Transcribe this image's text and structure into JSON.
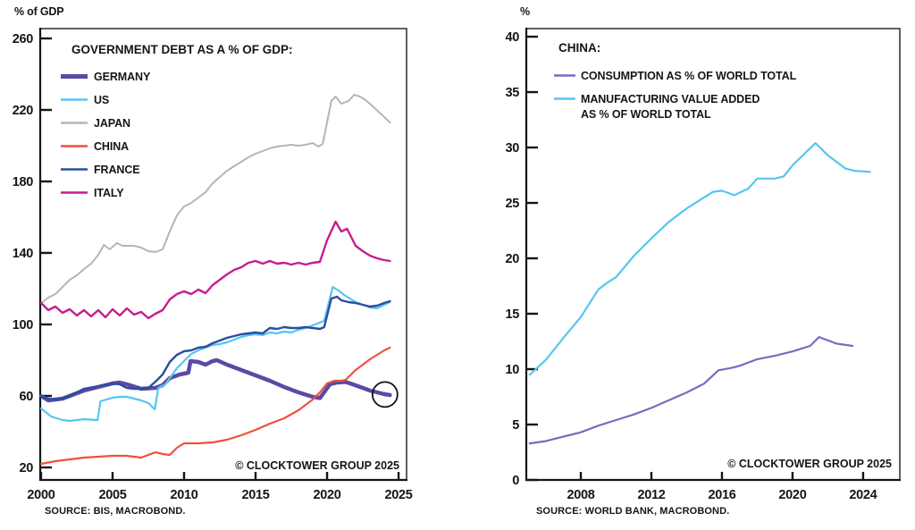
{
  "chart_data": [
    {
      "type": "line",
      "panel": "left",
      "axis_top_label": "% of GDP",
      "title": "GOVERNMENT DEBT AS A % OF GDP:",
      "source": "SOURCE: BIS, MACROBOND.",
      "watermark": "© CLOCKTOWER GROUP 2025",
      "xlim": [
        1999.94,
        2025.56
      ],
      "ylim": [
        13,
        265.5
      ],
      "x_ticks": [
        2000,
        2005,
        2010,
        2015,
        2020,
        2025
      ],
      "y_ticks": [
        20,
        60,
        100,
        140,
        180,
        220,
        260
      ],
      "grid": false,
      "legend_position": "top-left",
      "frame_color": "#2b2b2b",
      "text_color": "#151515",
      "series": [
        {
          "name": "GERMANY",
          "legend_lines": [
            "GERMANY"
          ],
          "color": "#5b4aa4",
          "width": 4.5,
          "z": 3,
          "x": [
            2000,
            2000.5,
            2001,
            2001.5,
            2002,
            2003,
            2004,
            2005,
            2005.5,
            2006,
            2007,
            2008,
            2008.5,
            2009,
            2009.7,
            2010.3,
            2010.45,
            2011,
            2011.5,
            2012,
            2012.3,
            2013,
            2014,
            2015,
            2016,
            2017,
            2018,
            2019,
            2019.5,
            2020.2,
            2020.7,
            2021.3,
            2021.8,
            2022.5,
            2023,
            2023.5,
            2024,
            2024.4
          ],
          "values": [
            60,
            57.5,
            58,
            58.5,
            60,
            63,
            65,
            67,
            67.5,
            66.5,
            64,
            64.5,
            66,
            70,
            72,
            73,
            79.5,
            79,
            77.5,
            79.5,
            80,
            77.5,
            74.5,
            71.5,
            68.5,
            65,
            62,
            59.5,
            58.8,
            66.5,
            67.5,
            67.8,
            66.5,
            64.5,
            63,
            62,
            61,
            60.5
          ]
        },
        {
          "name": "US",
          "legend_lines": [
            "US"
          ],
          "color": "#56c5f2",
          "width": 2.2,
          "z": 5,
          "x": [
            2000,
            2000.7,
            2001.5,
            2002,
            2003,
            2003.95,
            2004.15,
            2005,
            2005.5,
            2006,
            2006.5,
            2007,
            2007.5,
            2007.95,
            2008.2,
            2008.7,
            2009,
            2009.5,
            2010,
            2010.5,
            2011,
            2011.5,
            2012,
            2012.5,
            2013,
            2013.5,
            2014,
            2014.5,
            2015,
            2015.5,
            2016,
            2016.5,
            2017,
            2017.5,
            2018,
            2018.5,
            2019,
            2019.5,
            2019.8,
            2020.4,
            2020.8,
            2021.2,
            2021.6,
            2022,
            2022.5,
            2023,
            2023.5,
            2024,
            2024.4
          ],
          "values": [
            53,
            48.5,
            46.5,
            46,
            47,
            46.5,
            57,
            59,
            59.5,
            59.5,
            58.5,
            57.5,
            56,
            52.5,
            64.5,
            66.5,
            70,
            75.5,
            79.5,
            83.5,
            85.5,
            87,
            88.5,
            89,
            90,
            91.5,
            93,
            94,
            94.5,
            94,
            95.5,
            95,
            96,
            95.5,
            97,
            98,
            99.5,
            101,
            102,
            121,
            119,
            116.5,
            114.5,
            112.5,
            111,
            109.5,
            109,
            111,
            112.5
          ]
        },
        {
          "name": "JAPAN",
          "legend_lines": [
            "JAPAN"
          ],
          "color": "#b5b5b5",
          "width": 2,
          "z": 1,
          "x": [
            2000,
            2000.5,
            2001,
            2001.5,
            2002,
            2002.5,
            2003,
            2003.5,
            2004,
            2004.4,
            2004.8,
            2005.3,
            2005.7,
            2006.5,
            2007,
            2007.5,
            2008,
            2008.5,
            2009,
            2009.5,
            2010,
            2010.5,
            2011,
            2011.5,
            2012,
            2012.5,
            2013,
            2013.5,
            2014,
            2014.5,
            2015,
            2015.5,
            2016,
            2016.5,
            2017,
            2017.5,
            2018,
            2018.5,
            2019,
            2019.4,
            2019.7,
            2020.3,
            2020.6,
            2021,
            2021.5,
            2021.9,
            2022.3,
            2022.7,
            2023.2,
            2023.6,
            2024,
            2024.4
          ],
          "values": [
            112,
            115,
            117,
            121,
            125,
            127.5,
            131,
            134,
            139,
            144.5,
            142,
            145.5,
            144,
            144,
            143,
            141,
            140.5,
            142,
            152,
            161,
            166,
            168,
            171,
            174,
            179,
            182.5,
            186,
            188.5,
            191,
            193.5,
            195.5,
            197,
            198.5,
            199.5,
            200,
            200.5,
            200,
            200.5,
            201.5,
            199.5,
            201,
            225,
            227.5,
            223.5,
            225,
            228.5,
            227.5,
            225.5,
            222,
            219,
            216,
            213
          ]
        },
        {
          "name": "CHINA",
          "legend_lines": [
            "CHINA"
          ],
          "color": "#f1503a",
          "width": 2.2,
          "z": 4,
          "x": [
            2000,
            2001,
            2002,
            2003,
            2004,
            2005,
            2006,
            2006.5,
            2007,
            2007.5,
            2008,
            2008.5,
            2009,
            2009.5,
            2010,
            2011,
            2012,
            2013,
            2014,
            2015,
            2016,
            2017,
            2018,
            2019,
            2019.5,
            2020,
            2020.5,
            2021,
            2021.3,
            2022,
            2023,
            2024,
            2024.4
          ],
          "values": [
            22,
            23.5,
            24.5,
            25.5,
            26,
            26.5,
            26.5,
            26,
            25.5,
            27,
            28.5,
            27.5,
            27,
            31,
            33.5,
            33.5,
            34,
            35.5,
            38,
            41,
            44.5,
            47.5,
            52,
            58,
            62,
            67,
            68.5,
            68.5,
            69,
            74.5,
            80.5,
            85.5,
            87
          ]
        },
        {
          "name": "FRANCE",
          "legend_lines": [
            "FRANCE"
          ],
          "color": "#2c4da0",
          "width": 2.4,
          "z": 6,
          "x": [
            2000,
            2000.5,
            2001,
            2001.5,
            2002,
            2003,
            2004,
            2005,
            2005.5,
            2006,
            2006.5,
            2007,
            2007.5,
            2008,
            2008.5,
            2009,
            2009.5,
            2010,
            2010.5,
            2011,
            2011.5,
            2012,
            2012.5,
            2013,
            2013.5,
            2014,
            2015,
            2015.5,
            2016,
            2016.5,
            2017,
            2017.5,
            2018,
            2018.5,
            2019,
            2019.5,
            2019.8,
            2020.3,
            2020.7,
            2021,
            2021.5,
            2022,
            2022.5,
            2023,
            2023.5,
            2024,
            2024.4
          ],
          "values": [
            59.5,
            58.5,
            58,
            58.5,
            60,
            64,
            65.5,
            67,
            66.5,
            64.5,
            64,
            64,
            64.5,
            68,
            72,
            79,
            83,
            85,
            85.5,
            87,
            87.5,
            89.5,
            91,
            92.5,
            93.5,
            94.5,
            95.5,
            95,
            98,
            97.5,
            98.5,
            98,
            98,
            98.5,
            98,
            97.5,
            98.5,
            114.5,
            115.5,
            113.5,
            112.5,
            112,
            111,
            110,
            110.5,
            112,
            113
          ]
        },
        {
          "name": "ITALY",
          "legend_lines": [
            "ITALY"
          ],
          "color": "#c61d8e",
          "width": 2.4,
          "z": 2,
          "x": [
            2000,
            2000.5,
            2001,
            2001.5,
            2002,
            2002.5,
            2003,
            2003.5,
            2004,
            2004.5,
            2005,
            2005.5,
            2006,
            2006.5,
            2007,
            2007.5,
            2008,
            2008.5,
            2009,
            2009.5,
            2010,
            2010.5,
            2011,
            2011.5,
            2012,
            2012.5,
            2013,
            2013.5,
            2014,
            2014.5,
            2015,
            2015.5,
            2016,
            2016.5,
            2017,
            2017.5,
            2018,
            2018.5,
            2019,
            2019.5,
            2020,
            2020.6,
            2021,
            2021.4,
            2022,
            2022.5,
            2023,
            2023.5,
            2024,
            2024.4
          ],
          "values": [
            112,
            108,
            110,
            106.5,
            108.5,
            105,
            108,
            104.5,
            108,
            104,
            108.5,
            105,
            109,
            105.5,
            107,
            103.5,
            106,
            108,
            114,
            117,
            118.5,
            117,
            119.5,
            117.5,
            122,
            125,
            128,
            130.5,
            132,
            134.5,
            135.5,
            134,
            135.5,
            134,
            134.5,
            133.5,
            134.5,
            133.5,
            134.5,
            135,
            147,
            157.5,
            152,
            153.5,
            144,
            141,
            138.5,
            137,
            136,
            135.5
          ]
        }
      ],
      "annotation_circle": {
        "x": 2024.05,
        "y": 60.8,
        "r": 14,
        "color": "#111111"
      }
    },
    {
      "type": "line",
      "panel": "right",
      "axis_top_label": "%",
      "title": "CHINA:",
      "source": "SOURCE: WORLD BANK, MACROBOND.",
      "watermark": "© CLOCKTOWER GROUP 2025",
      "xlim": [
        2004.91,
        2026.08
      ],
      "ylim": [
        0,
        40.73
      ],
      "x_ticks": [
        2008,
        2012,
        2016,
        2020,
        2024
      ],
      "y_ticks": [
        0,
        5,
        10,
        15,
        20,
        25,
        30,
        35,
        40
      ],
      "grid": false,
      "legend_position": "top-left",
      "frame_color": "#2b2b2b",
      "text_color": "#151515",
      "series": [
        {
          "name": "CONSUMPTION AS % OF WORLD TOTAL",
          "legend_lines": [
            "CONSUMPTION AS % OF WORLD TOTAL"
          ],
          "color": "#7c6ac2",
          "width": 2.2,
          "z": 1,
          "x": [
            2005.1,
            2006,
            2007,
            2008,
            2009,
            2010,
            2011,
            2012,
            2013,
            2014,
            2015,
            2015.8,
            2016.5,
            2017,
            2018,
            2019,
            2020,
            2021,
            2021.5,
            2022.5,
            2023.4
          ],
          "values": [
            3.3,
            3.5,
            3.9,
            4.3,
            4.9,
            5.4,
            5.9,
            6.5,
            7.2,
            7.9,
            8.7,
            9.9,
            10.1,
            10.3,
            10.9,
            11.2,
            11.6,
            12.1,
            12.9,
            12.3,
            12.1
          ]
        },
        {
          "name": "MANUFACTURING VALUE ADDED AS % OF WORLD TOTAL",
          "legend_lines": [
            "MANUFACTURING VALUE ADDED",
            "AS % OF WORLD TOTAL"
          ],
          "color": "#56c5f2",
          "width": 2.2,
          "z": 2,
          "x": [
            2005.1,
            2006,
            2007,
            2008,
            2009,
            2009.5,
            2010,
            2011,
            2012,
            2013,
            2014,
            2015,
            2015.5,
            2016,
            2016.7,
            2017.5,
            2018,
            2019,
            2019.5,
            2020,
            2021.3,
            2022,
            2023,
            2023.5,
            2024.4
          ],
          "values": [
            9.5,
            10.8,
            12.8,
            14.7,
            17.2,
            17.8,
            18.3,
            20.2,
            21.8,
            23.3,
            24.5,
            25.5,
            26.0,
            26.1,
            25.7,
            26.3,
            27.2,
            27.2,
            27.4,
            28.4,
            30.4,
            29.3,
            28.1,
            27.9,
            27.8
          ]
        }
      ]
    }
  ]
}
